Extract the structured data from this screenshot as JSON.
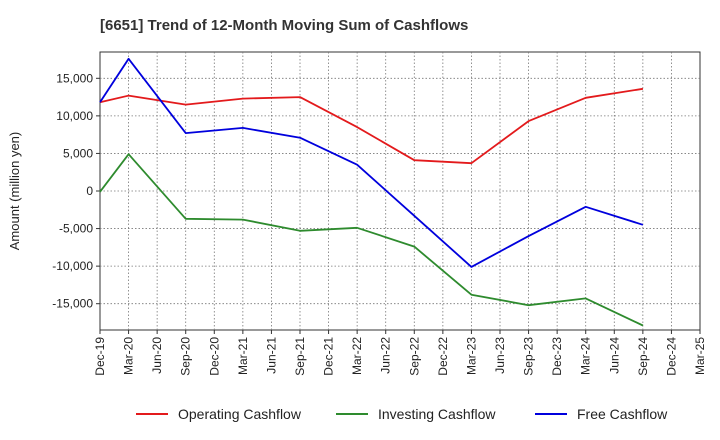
{
  "chart_data": {
    "type": "line",
    "title": "[6651]  Trend of 12-Month Moving Sum of Cashflows",
    "xlabel": "",
    "ylabel": "Amount (million yen)",
    "ylim": [
      -18500,
      18500
    ],
    "yticks": [
      15000,
      10000,
      5000,
      0,
      -5000,
      -10000,
      -15000
    ],
    "ytick_labels": [
      "15,000",
      "10,000",
      "5,000",
      "0",
      "-5,000",
      "-10,000",
      "-15,000"
    ],
    "categories": [
      "Dec-19",
      "Mar-20",
      "Jun-20",
      "Sep-20",
      "Dec-20",
      "Mar-21",
      "Jun-21",
      "Sep-21",
      "Dec-21",
      "Mar-22",
      "Jun-22",
      "Sep-22",
      "Dec-22",
      "Mar-23",
      "Jun-23",
      "Sep-23",
      "Dec-23",
      "Mar-24",
      "Jun-24",
      "Sep-24",
      "Dec-24",
      "Mar-25"
    ],
    "grid": true,
    "legend_position": "bottom",
    "series": [
      {
        "name": "Operating Cashflow",
        "color": "#e31a1c",
        "values": [
          11800,
          12700,
          null,
          11500,
          null,
          12300,
          null,
          12500,
          null,
          8500,
          null,
          4100,
          null,
          3700,
          null,
          9300,
          null,
          12400,
          null,
          13600,
          null,
          null
        ]
      },
      {
        "name": "Investing Cashflow",
        "color": "#2e8b2e",
        "values": [
          -100,
          4900,
          null,
          -3700,
          null,
          -3800,
          null,
          -5300,
          null,
          -4900,
          null,
          -7400,
          null,
          -13800,
          null,
          -15200,
          null,
          -14300,
          null,
          -17900,
          null,
          null
        ]
      },
      {
        "name": "Free Cashflow",
        "color": "#0000dd",
        "values": [
          11800,
          17600,
          null,
          7700,
          null,
          8400,
          null,
          7100,
          null,
          3500,
          null,
          -3300,
          null,
          -10100,
          null,
          -6000,
          null,
          -2100,
          null,
          -4500,
          null,
          null
        ]
      }
    ]
  }
}
